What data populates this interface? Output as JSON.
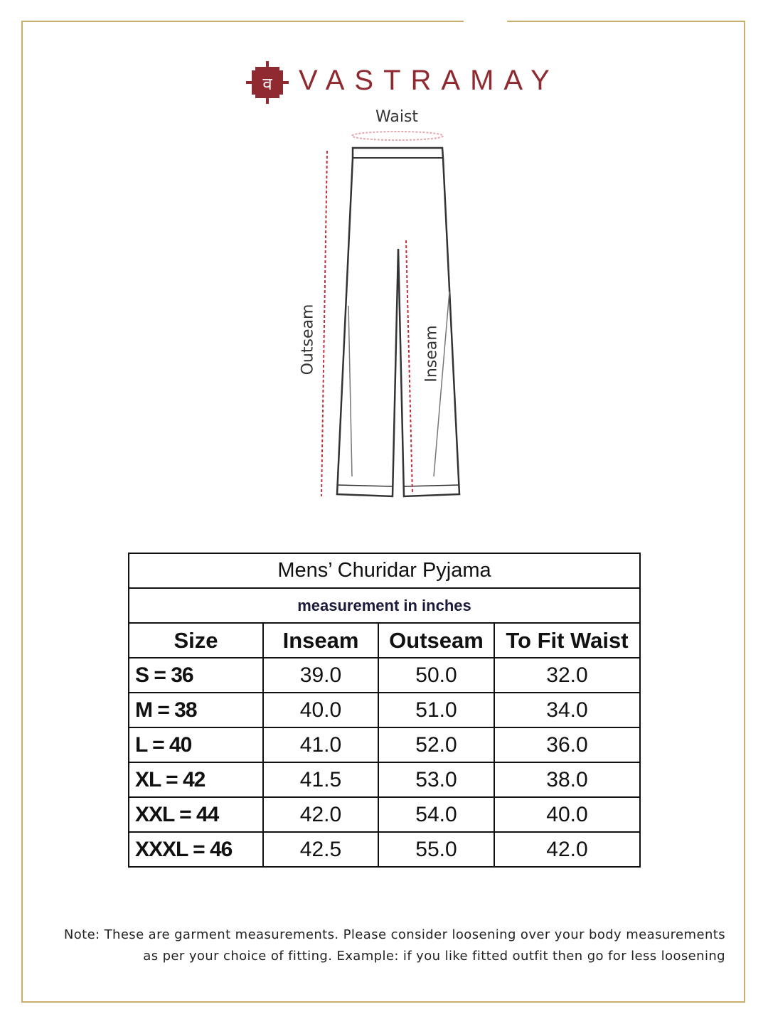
{
  "brand": {
    "name": "VASTRAMAY",
    "logo_glyph": "व",
    "color": "#8e2a30"
  },
  "frame_color": "#c9ae6e",
  "diagram": {
    "waist_label": "Waist",
    "outseam_label": "Outseam",
    "inseam_label": "Inseam"
  },
  "table": {
    "title": "Mens’ Churidar Pyjama",
    "subtitle": "measurement in inches",
    "headers": [
      "Size",
      "Inseam",
      "Outseam",
      "To Fit Waist"
    ],
    "rows": [
      [
        "S = 36",
        "39.0",
        "50.0",
        "32.0"
      ],
      [
        "M = 38",
        "40.0",
        "51.0",
        "34.0"
      ],
      [
        "L = 40",
        "41.0",
        "52.0",
        "36.0"
      ],
      [
        "XL = 42",
        "41.5",
        "53.0",
        "38.0"
      ],
      [
        "XXL = 44",
        "42.0",
        "54.0",
        "40.0"
      ],
      [
        "XXXL = 46",
        "42.5",
        "55.0",
        "42.0"
      ]
    ]
  },
  "note": {
    "line1": "Note: These are garment measurements. Please consider loosening over your body measurements",
    "line2": "as per your choice of fitting. Example: if you like fitted outfit then go for less loosening"
  }
}
